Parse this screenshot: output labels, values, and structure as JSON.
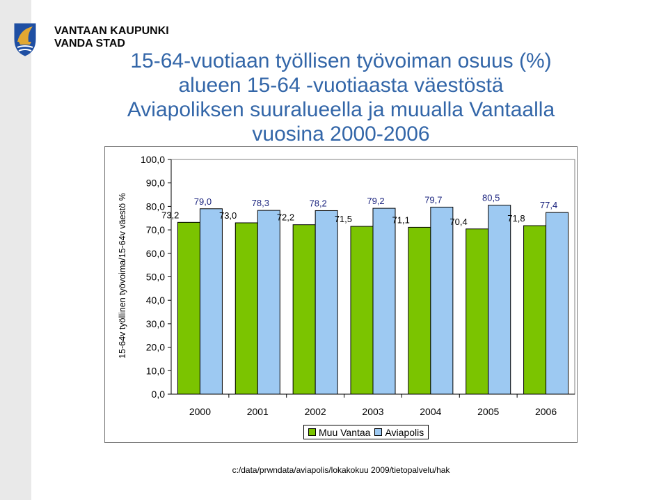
{
  "brand": {
    "line1": "VANTAAN KAUPUNKI",
    "line2": "VANDA STAD"
  },
  "title_lines": [
    "15-64-vuotiaan työllisen työvoiman osuus (%)",
    "alueen 15-64 -vuotiaasta väestöstä",
    "Aviapoliksen suuralueella ja muualla Vantaalla",
    "vuosina 2000-2006"
  ],
  "colors": {
    "title": "#3366a8",
    "muu_vantaa": "#7bc400",
    "aviapolis": "#9dc9f2",
    "label_muu": "#000000",
    "label_avia": "#1a237e",
    "logo_blue": "#1f4fa3",
    "logo_gold": "#e2a832"
  },
  "chart_data": {
    "type": "bar",
    "categories": [
      "2000",
      "2001",
      "2002",
      "2003",
      "2004",
      "2005",
      "2006"
    ],
    "series": [
      {
        "name": "Muu Vantaa",
        "values": [
          73.2,
          73.0,
          72.2,
          71.5,
          71.1,
          70.4,
          71.8
        ]
      },
      {
        "name": "Aviapolis",
        "values": [
          79.0,
          78.3,
          78.2,
          79.2,
          79.7,
          80.5,
          77.4
        ]
      }
    ],
    "value_labels": {
      "Muu Vantaa": [
        "73,2",
        "73,0",
        "72,2",
        "71,5",
        "71,1",
        "70,4",
        "71,8"
      ],
      "Aviapolis": [
        "79,0",
        "78,3",
        "78,2",
        "79,2",
        "79,7",
        "80,5",
        "77,4"
      ]
    },
    "ylim": [
      0,
      100
    ],
    "yticks": [
      "0,0",
      "10,0",
      "20,0",
      "30,0",
      "40,0",
      "50,0",
      "60,0",
      "70,0",
      "80,0",
      "90,0",
      "100,0"
    ],
    "ylabel": "15-64v työllinen työvoima/15-64v väestö %",
    "xlabel": "",
    "grid": false,
    "legend_position": "bottom"
  },
  "footer": "c:/data/prwndata/aviapolis/lokakokuu 2009/tietopalvelu/hak"
}
